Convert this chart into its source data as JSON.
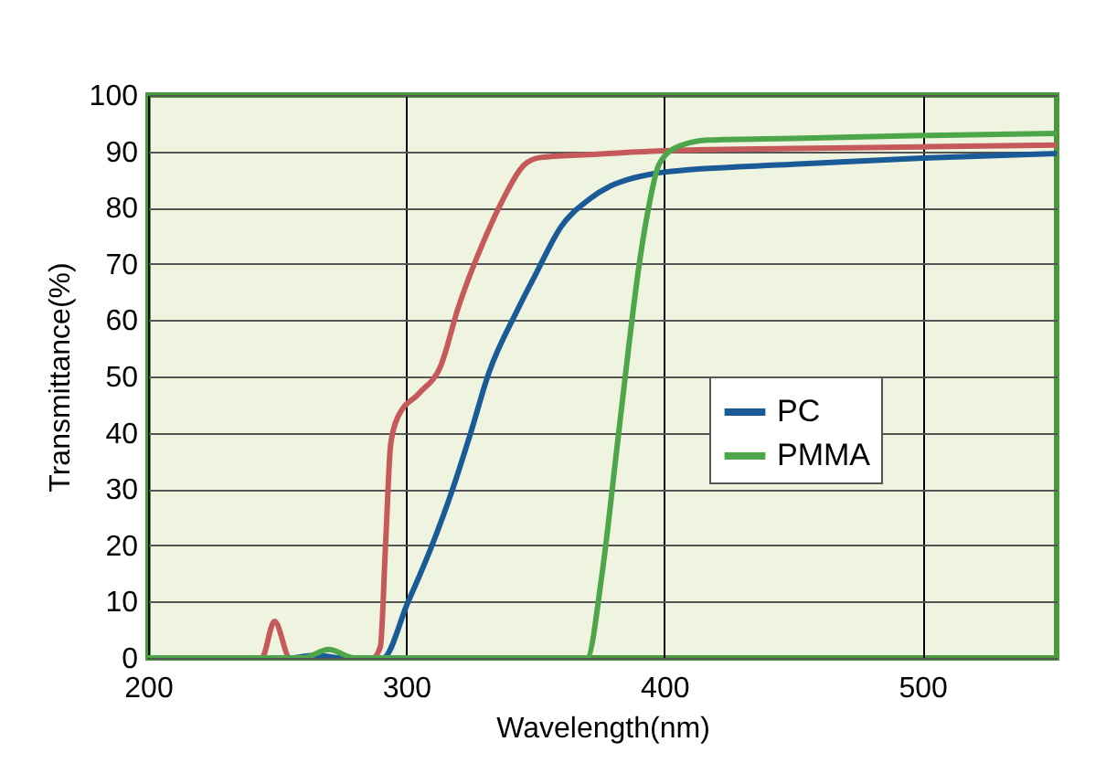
{
  "chart_data": {
    "type": "line",
    "xlabel": "Wavelength(nm)",
    "ylabel": "Transmittance(%)",
    "xlim": [
      200,
      552
    ],
    "ylim": [
      0,
      100
    ],
    "xticks": [
      200,
      300,
      400,
      500
    ],
    "yticks": [
      0,
      10,
      20,
      30,
      40,
      50,
      60,
      70,
      80,
      90,
      100
    ],
    "grid": true,
    "legend": "right",
    "line_style": "solid",
    "marker": "none",
    "series": [
      {
        "color": "#c65a5a",
        "x": [
          200,
          244,
          249,
          255,
          287,
          290,
          292,
          294,
          297,
          305,
          313.5,
          320,
          330,
          337,
          346,
          352,
          370,
          400,
          450,
          500,
          552
        ],
        "values": [
          0,
          0,
          6.5,
          0,
          0,
          2,
          20,
          38,
          43,
          47,
          52,
          62,
          74,
          81,
          87.7,
          88.9,
          89.4,
          90.1,
          90.5,
          90.8,
          91.1
        ]
      },
      {
        "name": "PC",
        "color": "#1a5a96",
        "x": [
          200,
          255,
          265,
          275,
          291,
          300.5,
          310,
          318,
          325,
          332,
          343,
          350,
          360,
          371,
          379,
          386,
          395.6,
          400,
          450,
          500,
          552
        ],
        "values": [
          0,
          0,
          0.5,
          0,
          0,
          9.7,
          20,
          30,
          40,
          50.6,
          61.7,
          68,
          76.6,
          81.5,
          83.8,
          85,
          86,
          86.3,
          87.7,
          88.8,
          89.6
        ]
      },
      {
        "name": "PMMA",
        "color": "#4ea64a",
        "x": [
          200,
          260,
          270,
          280,
          370,
          375.9,
          381.5,
          386.4,
          390,
          393.5,
          398,
          406,
          416.8,
          450,
          500,
          552
        ],
        "values": [
          0,
          0,
          1.5,
          0,
          0,
          15,
          36.7,
          56,
          69,
          79,
          87.7,
          91,
          92,
          92.3,
          92.8,
          93.2
        ]
      }
    ]
  }
}
